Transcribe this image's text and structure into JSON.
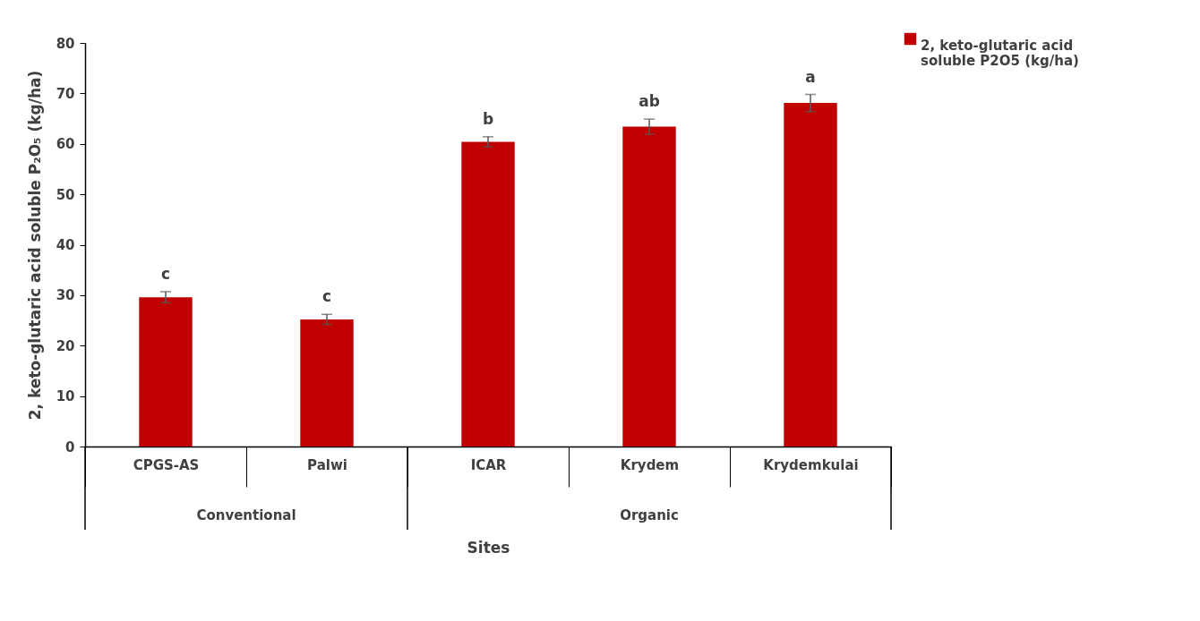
{
  "chart_data": {
    "type": "bar",
    "xlabel": "Sites",
    "ylabel": "2, keto-glutaric acid soluble P₂O₅ (kg/ha)",
    "categories": [
      "CPGS-AS",
      "Palwi",
      "ICAR",
      "Krydem",
      "Krydemkulai"
    ],
    "series": [
      {
        "name": "2, keto-glutaric acid soluble P2O5 (kg/ha)",
        "color": "#c00000",
        "values": [
          29.6,
          25.2,
          60.4,
          63.4,
          68.1
        ],
        "errors": [
          1.1,
          1.0,
          1.0,
          1.5,
          1.7
        ]
      }
    ],
    "ylim": [
      0,
      80
    ],
    "yticks": [
      0,
      10,
      20,
      30,
      40,
      50,
      60,
      70,
      80
    ],
    "legend": "top right",
    "annotations": [
      "c",
      "c",
      "b",
      "ab",
      "a",
      "Conventional",
      "Organic"
    ]
  }
}
